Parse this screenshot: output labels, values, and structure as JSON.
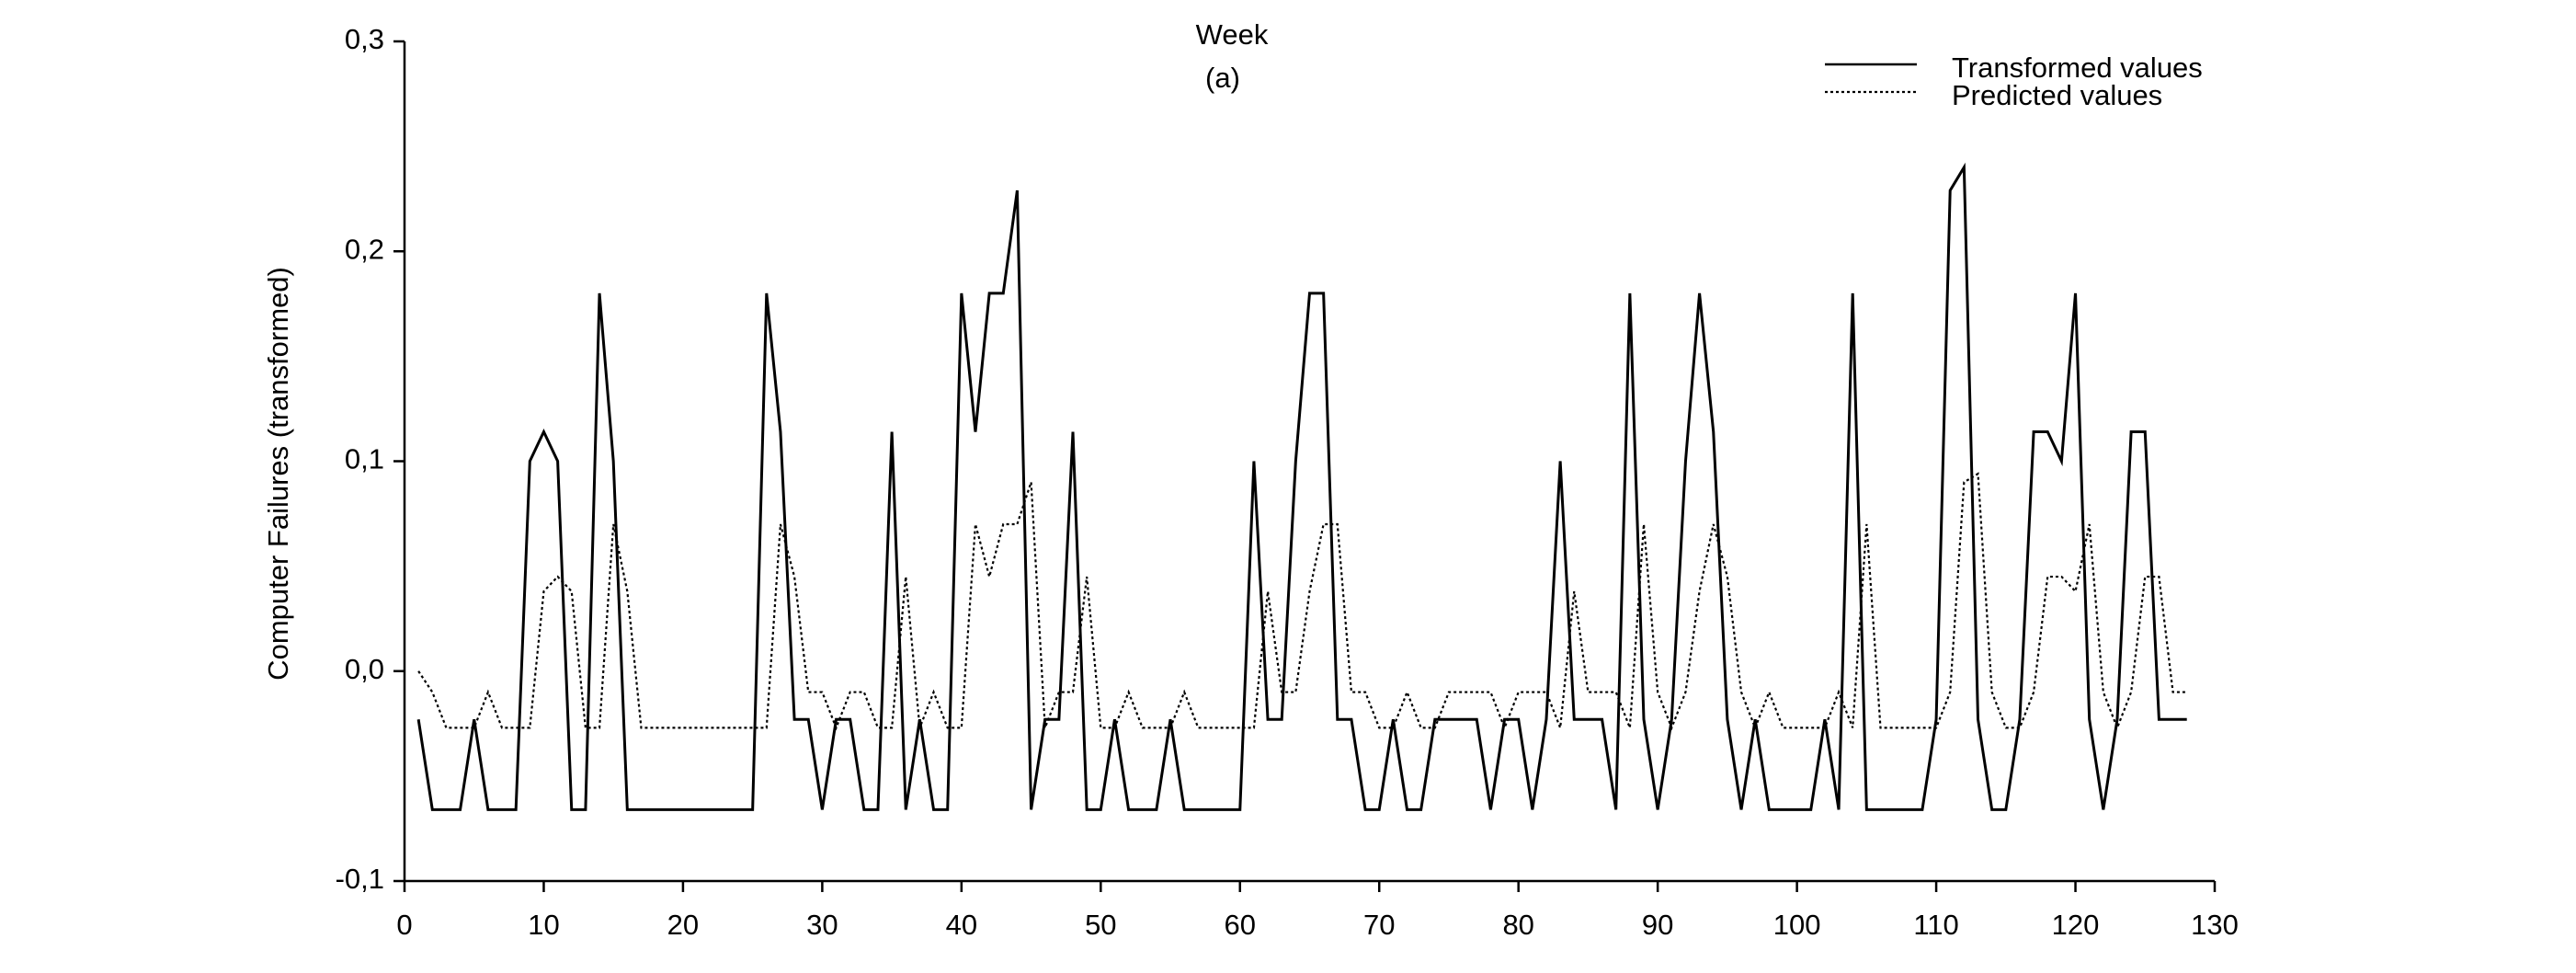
{
  "chart_data": {
    "type": "line",
    "title": "Week",
    "subtitle": "(a)",
    "ylabel": "Computer Failures (transformed)",
    "x": [
      1,
      2,
      3,
      4,
      5,
      6,
      7,
      8,
      9,
      10,
      11,
      12,
      13,
      14,
      15,
      16,
      17,
      18,
      19,
      20,
      21,
      22,
      23,
      24,
      25,
      26,
      27,
      28,
      29,
      30,
      31,
      32,
      33,
      34,
      35,
      36,
      37,
      38,
      39,
      40,
      41,
      42,
      43,
      44,
      45,
      46,
      47,
      48,
      49,
      50,
      51,
      52,
      53,
      54,
      55,
      56,
      57,
      58,
      59,
      60,
      61,
      62,
      63,
      64,
      65,
      66,
      67,
      68,
      69,
      70,
      71,
      72,
      73,
      74,
      75,
      76,
      77,
      78,
      79,
      80,
      81,
      82,
      83,
      84,
      85,
      86,
      87,
      88,
      89,
      90,
      91,
      92,
      93,
      94,
      95,
      96,
      97,
      98,
      99,
      100,
      101,
      102,
      103,
      104,
      105,
      106,
      107,
      108,
      109,
      110,
      111,
      112,
      113,
      114,
      115,
      116,
      117,
      118,
      119,
      120,
      121,
      122,
      123,
      124,
      125,
      126,
      127,
      128
    ],
    "series": [
      {
        "name": "Transformed values",
        "color": "#000000",
        "dash": "solid",
        "values": [
          -0.023,
          -0.066,
          -0.066,
          -0.066,
          -0.023,
          -0.066,
          -0.066,
          -0.066,
          0.1,
          0.114,
          0.1,
          -0.066,
          -0.066,
          0.18,
          0.1,
          -0.066,
          -0.066,
          -0.066,
          -0.066,
          -0.066,
          -0.066,
          -0.066,
          -0.066,
          -0.066,
          -0.066,
          0.18,
          0.114,
          -0.023,
          -0.023,
          -0.066,
          -0.023,
          -0.023,
          -0.066,
          -0.066,
          0.114,
          -0.066,
          -0.023,
          -0.066,
          -0.066,
          0.18,
          0.114,
          0.18,
          0.18,
          0.229,
          -0.066,
          -0.023,
          -0.023,
          0.114,
          -0.066,
          -0.066,
          -0.023,
          -0.066,
          -0.066,
          -0.066,
          -0.023,
          -0.066,
          -0.066,
          -0.066,
          -0.066,
          -0.066,
          0.1,
          -0.023,
          -0.023,
          0.1,
          0.18,
          0.18,
          -0.023,
          -0.023,
          -0.066,
          -0.066,
          -0.023,
          -0.066,
          -0.066,
          -0.023,
          -0.023,
          -0.023,
          -0.023,
          -0.066,
          -0.023,
          -0.023,
          -0.066,
          -0.023,
          0.1,
          -0.023,
          -0.023,
          -0.023,
          -0.066,
          0.18,
          -0.023,
          -0.066,
          -0.023,
          0.1,
          0.18,
          0.114,
          -0.023,
          -0.066,
          -0.023,
          -0.066,
          -0.066,
          -0.066,
          -0.066,
          -0.023,
          -0.066,
          0.18,
          -0.066,
          -0.066,
          -0.066,
          -0.066,
          -0.066,
          -0.023,
          0.229,
          0.24,
          -0.023,
          -0.066,
          -0.066,
          -0.023,
          0.114,
          0.114,
          0.1,
          0.18,
          -0.023,
          -0.066,
          -0.023,
          0.114,
          0.114,
          -0.023,
          -0.023,
          -0.023
        ]
      },
      {
        "name": "Predicted values",
        "color": "#000000",
        "dash": "dotted",
        "values": [
          0,
          -0.01,
          -0.027,
          -0.027,
          -0.027,
          -0.01,
          -0.027,
          -0.027,
          -0.027,
          0.038,
          0.045,
          0.038,
          -0.027,
          -0.027,
          0.07,
          0.038,
          -0.027,
          -0.027,
          -0.027,
          -0.027,
          -0.027,
          -0.027,
          -0.027,
          -0.027,
          -0.027,
          -0.027,
          0.07,
          0.045,
          -0.01,
          -0.01,
          -0.027,
          -0.01,
          -0.01,
          -0.027,
          -0.027,
          0.045,
          -0.027,
          -0.01,
          -0.027,
          -0.027,
          0.07,
          0.045,
          0.07,
          0.07,
          0.09,
          -0.027,
          -0.01,
          -0.01,
          0.045,
          -0.027,
          -0.027,
          -0.01,
          -0.027,
          -0.027,
          -0.027,
          -0.01,
          -0.027,
          -0.027,
          -0.027,
          -0.027,
          -0.027,
          0.038,
          -0.01,
          -0.01,
          0.038,
          0.07,
          0.07,
          -0.01,
          -0.01,
          -0.027,
          -0.027,
          -0.01,
          -0.027,
          -0.027,
          -0.01,
          -0.01,
          -0.01,
          -0.01,
          -0.027,
          -0.01,
          -0.01,
          -0.01,
          -0.027,
          0.038,
          -0.01,
          -0.01,
          -0.01,
          -0.027,
          0.07,
          -0.01,
          -0.027,
          -0.01,
          0.038,
          0.07,
          0.045,
          -0.01,
          -0.027,
          -0.01,
          -0.027,
          -0.027,
          -0.027,
          -0.027,
          -0.01,
          -0.027,
          0.07,
          -0.027,
          -0.027,
          -0.027,
          -0.027,
          -0.027,
          -0.01,
          0.09,
          0.094,
          -0.01,
          -0.027,
          -0.027,
          -0.01,
          0.045,
          0.045,
          0.038,
          0.07,
          -0.01,
          -0.027,
          -0.01,
          0.045,
          0.045,
          -0.01,
          -0.01
        ]
      }
    ],
    "xlim": [
      0,
      130
    ],
    "xticks": [
      0,
      10,
      20,
      30,
      40,
      50,
      60,
      70,
      80,
      90,
      100,
      110,
      120,
      130
    ],
    "ylim": [
      -0.1,
      0.3
    ],
    "yticks": [
      {
        "value": -0.1,
        "label": "-0,1"
      },
      {
        "value": 0,
        "label": "0,0"
      },
      {
        "value": 0.1,
        "label": "0,1"
      },
      {
        "value": 0.2,
        "label": "0,2"
      },
      {
        "value": 0.3,
        "label": "0,3"
      }
    ],
    "legend": "upper right",
    "grid": false
  }
}
